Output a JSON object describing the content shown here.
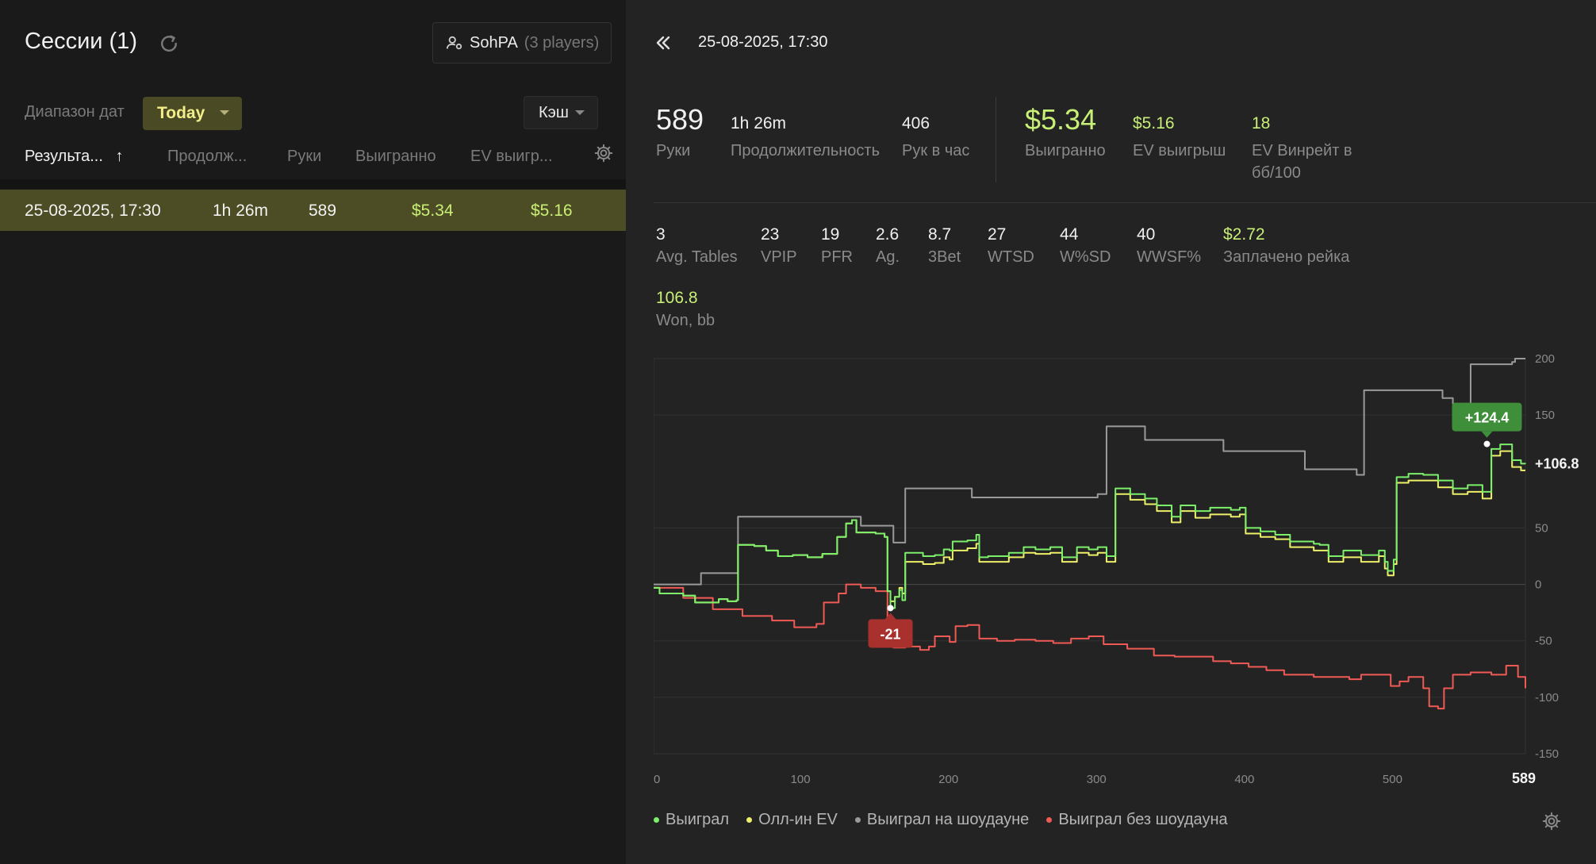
{
  "sessions": {
    "title": "Сессии (1)",
    "player_name": "SohPA",
    "player_count": "(3 players)",
    "date_range_label": "Диапазон дат",
    "date_range_value": "Today",
    "game_type_value": "Кэш",
    "columns": [
      "Результа...",
      "Продолж...",
      "Руки",
      "Выигранно",
      "EV выигр..."
    ],
    "sort_arrow": "↑",
    "rows": [
      {
        "date": "25-08-2025, 17:30",
        "duration": "1h 26m",
        "hands": "589",
        "won": "$5.34",
        "ev_won": "$5.16"
      }
    ]
  },
  "detail": {
    "title": "25-08-2025, 17:30",
    "stats_top": [
      {
        "value": "589",
        "label": "Руки"
      },
      {
        "value": "1h 26m",
        "label": "Продолжительность"
      },
      {
        "value": "406",
        "label": "Рук в час"
      }
    ],
    "stats_money": [
      {
        "value": "$5.34",
        "label": "Выигранно"
      },
      {
        "value": "$5.16",
        "label": "EV выигрыш"
      },
      {
        "value": "18",
        "label": "EV Винрейт в",
        "label2": "бб/100"
      }
    ],
    "stats_row2": [
      {
        "value": "3",
        "label": "Avg. Tables"
      },
      {
        "value": "23",
        "label": "VPIP"
      },
      {
        "value": "19",
        "label": "PFR"
      },
      {
        "value": "2.6",
        "label": "Ag."
      },
      {
        "value": "8.7",
        "label": "3Bet"
      },
      {
        "value": "27",
        "label": "WTSD"
      },
      {
        "value": "44",
        "label": "W%SD"
      },
      {
        "value": "40",
        "label": "WWSF%"
      },
      {
        "value": "$2.72",
        "label": "Заплачено рейка"
      }
    ],
    "won_bb": {
      "value": "106.8",
      "label": "Won, bb"
    }
  },
  "colors": {
    "won": "#7cf06a",
    "allin_ev": "#eef06a",
    "showdown": "#9a9a9a",
    "non_showdown": "#f05a55",
    "selected_row": "#4c4c25",
    "accent_green": "#c8ef76"
  },
  "chart_data": {
    "type": "line",
    "xlim": [
      0,
      589
    ],
    "ylim": [
      -150,
      200
    ],
    "x_ticks": [
      0,
      100,
      200,
      300,
      400,
      500
    ],
    "x_end_label": "589",
    "y_ticks": [
      200,
      150,
      50,
      0,
      -50,
      -100,
      -150
    ],
    "y_end_label": "+106.8",
    "grid": true,
    "legend_position": "bottom-left",
    "annotations": [
      {
        "x": 160,
        "y": -21,
        "text": "-21"
      },
      {
        "x": 563,
        "y": 124.4,
        "text": "+124.4"
      }
    ],
    "series": [
      {
        "name": "Выиграл",
        "color": "#7cf06a",
        "points": [
          [
            0,
            -3
          ],
          [
            4,
            -8
          ],
          [
            12,
            -8
          ],
          [
            20,
            -10
          ],
          [
            28,
            -16
          ],
          [
            36,
            -16
          ],
          [
            44,
            -13
          ],
          [
            50,
            -15
          ],
          [
            56,
            -14
          ],
          [
            57,
            35
          ],
          [
            68,
            34
          ],
          [
            76,
            30
          ],
          [
            84,
            25
          ],
          [
            94,
            26
          ],
          [
            104,
            24
          ],
          [
            114,
            27
          ],
          [
            124,
            42
          ],
          [
            130,
            54
          ],
          [
            134,
            57
          ],
          [
            137,
            46
          ],
          [
            150,
            45
          ],
          [
            156,
            42
          ],
          [
            158,
            -6
          ],
          [
            160,
            -21
          ],
          [
            163,
            -11
          ],
          [
            166,
            -5
          ],
          [
            168,
            -14
          ],
          [
            170,
            28
          ],
          [
            182,
            25
          ],
          [
            190,
            26
          ],
          [
            196,
            31
          ],
          [
            200,
            30
          ],
          [
            202,
            38
          ],
          [
            212,
            39
          ],
          [
            218,
            44
          ],
          [
            220,
            24
          ],
          [
            226,
            25
          ],
          [
            234,
            25
          ],
          [
            240,
            28
          ],
          [
            250,
            33
          ],
          [
            258,
            31
          ],
          [
            268,
            33
          ],
          [
            276,
            24
          ],
          [
            286,
            33
          ],
          [
            294,
            31
          ],
          [
            300,
            33
          ],
          [
            306,
            25
          ],
          [
            312,
            85
          ],
          [
            322,
            80
          ],
          [
            332,
            76
          ],
          [
            340,
            70
          ],
          [
            350,
            60
          ],
          [
            356,
            70
          ],
          [
            366,
            65
          ],
          [
            376,
            68
          ],
          [
            390,
            66
          ],
          [
            396,
            68
          ],
          [
            400,
            50
          ],
          [
            410,
            47
          ],
          [
            420,
            44
          ],
          [
            430,
            38
          ],
          [
            440,
            38
          ],
          [
            446,
            36
          ],
          [
            450,
            35
          ],
          [
            456,
            25
          ],
          [
            466,
            30
          ],
          [
            478,
            26
          ],
          [
            490,
            30
          ],
          [
            494,
            20
          ],
          [
            496,
            12
          ],
          [
            500,
            22
          ],
          [
            502,
            95
          ],
          [
            510,
            98
          ],
          [
            520,
            97
          ],
          [
            530,
            92
          ],
          [
            540,
            85
          ],
          [
            550,
            88
          ],
          [
            560,
            82
          ],
          [
            566,
            120
          ],
          [
            572,
            124
          ],
          [
            580,
            110
          ],
          [
            586,
            107
          ],
          [
            589,
            106.8
          ]
        ]
      },
      {
        "name": "Олл-ин EV",
        "color": "#eef06a",
        "points": [
          [
            0,
            -3
          ],
          [
            4,
            -8
          ],
          [
            12,
            -8
          ],
          [
            20,
            -10
          ],
          [
            28,
            -16
          ],
          [
            36,
            -16
          ],
          [
            44,
            -13
          ],
          [
            50,
            -15
          ],
          [
            56,
            -14
          ],
          [
            57,
            35
          ],
          [
            68,
            34
          ],
          [
            76,
            30
          ],
          [
            84,
            25
          ],
          [
            94,
            26
          ],
          [
            104,
            24
          ],
          [
            114,
            27
          ],
          [
            124,
            42
          ],
          [
            130,
            54
          ],
          [
            134,
            57
          ],
          [
            137,
            46
          ],
          [
            150,
            45
          ],
          [
            156,
            42
          ],
          [
            158,
            -6
          ],
          [
            160,
            -15
          ],
          [
            163,
            -11
          ],
          [
            166,
            -3
          ],
          [
            168,
            -8
          ],
          [
            170,
            20
          ],
          [
            182,
            18
          ],
          [
            190,
            19
          ],
          [
            196,
            24
          ],
          [
            200,
            22
          ],
          [
            202,
            30
          ],
          [
            212,
            32
          ],
          [
            218,
            36
          ],
          [
            220,
            20
          ],
          [
            226,
            20
          ],
          [
            234,
            20
          ],
          [
            240,
            24
          ],
          [
            250,
            28
          ],
          [
            258,
            27
          ],
          [
            268,
            28
          ],
          [
            276,
            20
          ],
          [
            286,
            28
          ],
          [
            294,
            26
          ],
          [
            300,
            28
          ],
          [
            306,
            20
          ],
          [
            312,
            80
          ],
          [
            322,
            75
          ],
          [
            332,
            71
          ],
          [
            340,
            65
          ],
          [
            350,
            55
          ],
          [
            356,
            65
          ],
          [
            366,
            59
          ],
          [
            376,
            62
          ],
          [
            390,
            60
          ],
          [
            396,
            62
          ],
          [
            400,
            45
          ],
          [
            410,
            42
          ],
          [
            420,
            40
          ],
          [
            430,
            33
          ],
          [
            440,
            33
          ],
          [
            446,
            30
          ],
          [
            450,
            30
          ],
          [
            456,
            20
          ],
          [
            466,
            24
          ],
          [
            478,
            20
          ],
          [
            490,
            25
          ],
          [
            494,
            14
          ],
          [
            496,
            8
          ],
          [
            500,
            18
          ],
          [
            502,
            90
          ],
          [
            510,
            92
          ],
          [
            520,
            92
          ],
          [
            530,
            86
          ],
          [
            540,
            80
          ],
          [
            550,
            82
          ],
          [
            560,
            76
          ],
          [
            566,
            114
          ],
          [
            572,
            118
          ],
          [
            580,
            104
          ],
          [
            586,
            101
          ],
          [
            589,
            101
          ]
        ]
      },
      {
        "name": "Выиграл на шоудауне",
        "color": "#9a9a9a",
        "points": [
          [
            0,
            0
          ],
          [
            30,
            0
          ],
          [
            32,
            10
          ],
          [
            55,
            10
          ],
          [
            57,
            60
          ],
          [
            80,
            60
          ],
          [
            120,
            60
          ],
          [
            135,
            60
          ],
          [
            140,
            52
          ],
          [
            150,
            52
          ],
          [
            160,
            52
          ],
          [
            162,
            37
          ],
          [
            168,
            37
          ],
          [
            170,
            85
          ],
          [
            212,
            85
          ],
          [
            215,
            77
          ],
          [
            255,
            77
          ],
          [
            290,
            77
          ],
          [
            300,
            80
          ],
          [
            304,
            80
          ],
          [
            306,
            140
          ],
          [
            330,
            140
          ],
          [
            332,
            128
          ],
          [
            370,
            128
          ],
          [
            385,
            118
          ],
          [
            440,
            102
          ],
          [
            470,
            102
          ],
          [
            475,
            97
          ],
          [
            478,
            97
          ],
          [
            480,
            172
          ],
          [
            530,
            172
          ],
          [
            533,
            165
          ],
          [
            537,
            165
          ],
          [
            540,
            160
          ],
          [
            550,
            160
          ],
          [
            552,
            195
          ],
          [
            560,
            195
          ],
          [
            565,
            195
          ],
          [
            580,
            197
          ],
          [
            582,
            200
          ],
          [
            589,
            200
          ]
        ]
      },
      {
        "name": "Выиграл без шоудауна",
        "color": "#f05a55",
        "points": [
          [
            0,
            -3
          ],
          [
            20,
            -12
          ],
          [
            40,
            -22
          ],
          [
            60,
            -28
          ],
          [
            80,
            -32
          ],
          [
            95,
            -38
          ],
          [
            110,
            -35
          ],
          [
            115,
            -16
          ],
          [
            125,
            -8
          ],
          [
            130,
            0
          ],
          [
            140,
            -3
          ],
          [
            150,
            -6
          ],
          [
            158,
            -48
          ],
          [
            162,
            -56
          ],
          [
            170,
            -55
          ],
          [
            180,
            -58
          ],
          [
            186,
            -55
          ],
          [
            190,
            -46
          ],
          [
            200,
            -51
          ],
          [
            204,
            -37
          ],
          [
            212,
            -36
          ],
          [
            220,
            -48
          ],
          [
            232,
            -50
          ],
          [
            244,
            -49
          ],
          [
            258,
            -50
          ],
          [
            270,
            -52
          ],
          [
            282,
            -48
          ],
          [
            294,
            -46
          ],
          [
            304,
            -53
          ],
          [
            320,
            -57
          ],
          [
            338,
            -63
          ],
          [
            352,
            -64
          ],
          [
            366,
            -64
          ],
          [
            378,
            -68
          ],
          [
            390,
            -70
          ],
          [
            402,
            -73
          ],
          [
            414,
            -76
          ],
          [
            426,
            -80
          ],
          [
            436,
            -80
          ],
          [
            446,
            -82
          ],
          [
            458,
            -82
          ],
          [
            470,
            -84
          ],
          [
            478,
            -80
          ],
          [
            490,
            -80
          ],
          [
            498,
            -90
          ],
          [
            504,
            -86
          ],
          [
            510,
            -82
          ],
          [
            520,
            -92
          ],
          [
            524,
            -108
          ],
          [
            530,
            -110
          ],
          [
            534,
            -92
          ],
          [
            540,
            -80
          ],
          [
            552,
            -78
          ],
          [
            566,
            -80
          ],
          [
            576,
            -72
          ],
          [
            584,
            -82
          ],
          [
            589,
            -92
          ]
        ]
      }
    ]
  }
}
